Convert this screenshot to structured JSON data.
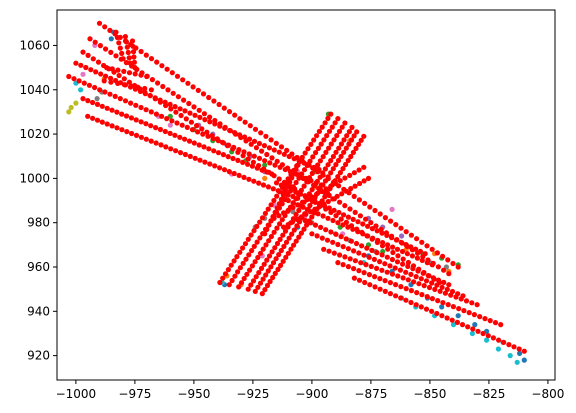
{
  "chart_data": {
    "type": "scatter",
    "title": "",
    "xlabel": "",
    "ylabel": "",
    "xlim": [
      -1008,
      -797
    ],
    "ylim": [
      909,
      1076
    ],
    "grid": false,
    "x_ticks": [
      -1000,
      -975,
      -950,
      -925,
      -900,
      -875,
      -850,
      -825,
      -800
    ],
    "x_tick_labels": [
      "−1000",
      "−975",
      "−950",
      "−925",
      "−900",
      "−875",
      "−850",
      "−825",
      "−800"
    ],
    "y_ticks": [
      920,
      940,
      960,
      980,
      1000,
      1020,
      1040,
      1060
    ],
    "y_tick_labels": [
      "920",
      "940",
      "960",
      "980",
      "1000",
      "1020",
      "1040",
      "1060"
    ],
    "colors": {
      "red": "#ff0000",
      "blue": "#1f77b4",
      "cyan": "#17becf",
      "green": "#2ca02c",
      "pink": "#e377c2",
      "purple": "#9467bd",
      "orange": "#ff7f0e",
      "olive": "#bcbd22",
      "gray": "#7f7f7f"
    },
    "series": [
      {
        "color": "red",
        "lanes": [
          {
            "from": [
              -990,
              1070
            ],
            "to": [
              -838,
              960
            ],
            "n": 70
          },
          {
            "from": [
              -994,
              1063
            ],
            "to": [
              -842,
              957
            ],
            "n": 70
          },
          {
            "from": [
              -997,
              1057
            ],
            "to": [
              -846,
              953
            ],
            "n": 70
          },
          {
            "from": [
              -1000,
              1052
            ],
            "to": [
              -897,
              1004
            ],
            "n": 50
          },
          {
            "from": [
              -1003,
              1046
            ],
            "to": [
              -896,
              997
            ],
            "n": 50
          },
          {
            "from": [
              -997,
              1036
            ],
            "to": [
              -917,
              1002
            ],
            "n": 40
          },
          {
            "from": [
              -995,
              1028
            ],
            "to": [
              -906,
              991
            ],
            "n": 44
          },
          {
            "from": [
              -915,
              998
            ],
            "to": [
              -852,
              966
            ],
            "n": 32
          },
          {
            "from": [
              -910,
              990
            ],
            "to": [
              -849,
              961
            ],
            "n": 30
          },
          {
            "from": [
              -905,
              982
            ],
            "to": [
              -842,
              952
            ],
            "n": 30
          },
          {
            "from": [
              -900,
              975
            ],
            "to": [
              -836,
              947
            ],
            "n": 30
          },
          {
            "from": [
              -895,
              968
            ],
            "to": [
              -830,
              943
            ],
            "n": 30
          },
          {
            "from": [
              -889,
              962
            ],
            "to": [
              -820,
              934
            ],
            "n": 32
          },
          {
            "from": [
              -882,
              955
            ],
            "to": [
              -810,
              922
            ],
            "n": 34
          },
          {
            "from": [
              -983,
              1066
            ],
            "to": [
              -980,
              1054
            ],
            "n": 6
          },
          {
            "from": [
              -979,
              1064
            ],
            "to": [
              -977,
              1052
            ],
            "n": 6
          },
          {
            "from": [
              -976,
              1062
            ],
            "to": [
              -975,
              1050
            ],
            "n": 6
          },
          {
            "from": [
              -987,
              1050
            ],
            "to": [
              -970,
              1046
            ],
            "n": 8
          },
          {
            "from": [
              -988,
              1044
            ],
            "to": [
              -968,
              1040
            ],
            "n": 8
          },
          {
            "from": [
              -939,
              953
            ],
            "to": [
              -892,
              1029
            ],
            "n": 40
          },
          {
            "from": [
              -935,
              952
            ],
            "to": [
              -889,
              1027
            ],
            "n": 40
          },
          {
            "from": [
              -931,
              951
            ],
            "to": [
              -886,
              1025
            ],
            "n": 40
          },
          {
            "from": [
              -927,
              950
            ],
            "to": [
              -883,
              1023
            ],
            "n": 40
          },
          {
            "from": [
              -924,
              949
            ],
            "to": [
              -881,
              1021
            ],
            "n": 40
          },
          {
            "from": [
              -921,
              948
            ],
            "to": [
              -878,
              1019
            ],
            "n": 40
          },
          {
            "from": [
              -916,
              982
            ],
            "to": [
              -878,
              1005
            ],
            "n": 20
          },
          {
            "from": [
              -912,
              978
            ],
            "to": [
              -876,
              1000
            ],
            "n": 20
          },
          {
            "from": [
              -905,
              1008
            ],
            "to": [
              -920,
              975
            ],
            "n": 18
          }
        ]
      },
      {
        "color": "blue",
        "points": [
          [
            -984,
            1066
          ],
          [
            -985,
            1063
          ],
          [
            -937,
            952
          ],
          [
            -906,
            978
          ],
          [
            -876,
            965
          ],
          [
            -866,
            958
          ],
          [
            -858,
            952
          ],
          [
            -851,
            946
          ],
          [
            -845,
            942
          ],
          [
            -838,
            938
          ],
          [
            -831,
            934
          ],
          [
            -826,
            931
          ],
          [
            -819,
            926
          ],
          [
            -812,
            921
          ],
          [
            -810,
            918
          ]
        ]
      },
      {
        "color": "cyan",
        "points": [
          [
            -1000,
            1043
          ],
          [
            -998,
            1040
          ],
          [
            -938,
            953
          ],
          [
            -878,
            962
          ],
          [
            -848,
            938
          ],
          [
            -840,
            934
          ],
          [
            -832,
            930
          ],
          [
            -826,
            927
          ],
          [
            -821,
            923
          ],
          [
            -816,
            920
          ],
          [
            -813,
            917
          ],
          [
            -862,
            946
          ],
          [
            -856,
            942
          ]
        ]
      },
      {
        "color": "green",
        "points": [
          [
            -960,
            1028
          ],
          [
            -950,
            1022
          ],
          [
            -942,
            1017
          ],
          [
            -934,
            1012
          ],
          [
            -928,
            1008
          ],
          [
            -920,
            1006
          ],
          [
            -910,
            998
          ],
          [
            -898,
            1003
          ],
          [
            -893,
            1029
          ],
          [
            -888,
            978
          ],
          [
            -876,
            970
          ],
          [
            -870,
            967
          ],
          [
            -860,
            970
          ],
          [
            -853,
            966
          ],
          [
            -845,
            964
          ],
          [
            -838,
            961
          ]
        ]
      },
      {
        "color": "pink",
        "points": [
          [
            -994,
            1063
          ],
          [
            -992,
            1060
          ],
          [
            -997,
            1047
          ],
          [
            -965,
            1028
          ],
          [
            -960,
            1024
          ],
          [
            -934,
            1002
          ],
          [
            -916,
            988
          ],
          [
            -903,
            982
          ],
          [
            -887,
            975
          ],
          [
            -866,
            986
          ],
          [
            -906,
            1003
          ],
          [
            -921,
            965
          ]
        ]
      },
      {
        "color": "purple",
        "points": [
          [
            -948,
            1024
          ],
          [
            -942,
            1020
          ],
          [
            -936,
            1015
          ],
          [
            -926,
            1010
          ],
          [
            -920,
            1003
          ],
          [
            -876,
            982
          ],
          [
            -870,
            978
          ],
          [
            -862,
            974
          ]
        ]
      },
      {
        "color": "orange",
        "points": [
          [
            -988,
            1045
          ],
          [
            -920,
            1000
          ],
          [
            -903,
            1000
          ],
          [
            -898,
            996
          ],
          [
            -860,
            968
          ],
          [
            -848,
            966
          ],
          [
            -842,
            958
          ],
          [
            -936,
            956
          ],
          [
            -930,
            952
          ],
          [
            -884,
            1017
          ]
        ]
      },
      {
        "color": "olive",
        "points": [
          [
            -1003,
            1030
          ],
          [
            -1002,
            1032
          ],
          [
            -1000,
            1034
          ],
          [
            -975,
            1050
          ]
        ]
      },
      {
        "color": "gray",
        "points": [
          [
            -989,
            1039
          ],
          [
            -991,
            1036
          ],
          [
            -908,
            985
          ],
          [
            -900,
            980
          ],
          [
            -890,
            975
          ],
          [
            -884,
            972
          ],
          [
            -873,
            967
          ],
          [
            -850,
            962
          ],
          [
            -843,
            960
          ],
          [
            -920,
            982
          ],
          [
            -924,
            978
          ]
        ]
      }
    ]
  }
}
